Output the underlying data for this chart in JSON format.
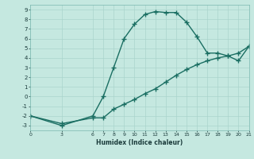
{
  "line1_x": [
    0,
    3,
    6,
    7,
    8,
    9,
    10,
    11,
    12,
    13,
    14,
    15,
    16,
    17,
    18,
    19,
    20,
    21
  ],
  "line1_y": [
    -2,
    -3,
    -2,
    0,
    3,
    6,
    7.5,
    8.5,
    8.8,
    8.7,
    8.7,
    7.7,
    6.2,
    4.5,
    4.5,
    4.2,
    3.7,
    5.2
  ],
  "line2_x": [
    0,
    3,
    6,
    7,
    8,
    9,
    10,
    11,
    12,
    13,
    14,
    15,
    16,
    17,
    18,
    19,
    20,
    21
  ],
  "line2_y": [
    -2,
    -2.8,
    -2.2,
    -2.2,
    -1.3,
    -0.8,
    -0.3,
    0.3,
    0.8,
    1.5,
    2.2,
    2.8,
    3.3,
    3.7,
    4.0,
    4.2,
    4.5,
    5.2
  ],
  "color": "#1a6e62",
  "bg_color": "#c5e8e0",
  "grid_color": "#aad4cc",
  "xlabel": "Humidex (Indice chaleur)",
  "xticks": [
    0,
    3,
    6,
    7,
    8,
    9,
    10,
    11,
    12,
    13,
    14,
    15,
    16,
    17,
    18,
    19,
    20,
    21
  ],
  "yticks": [
    -3,
    -2,
    -1,
    0,
    1,
    2,
    3,
    4,
    5,
    6,
    7,
    8,
    9
  ],
  "xlim": [
    0,
    21
  ],
  "ylim": [
    -3.5,
    9.5
  ]
}
